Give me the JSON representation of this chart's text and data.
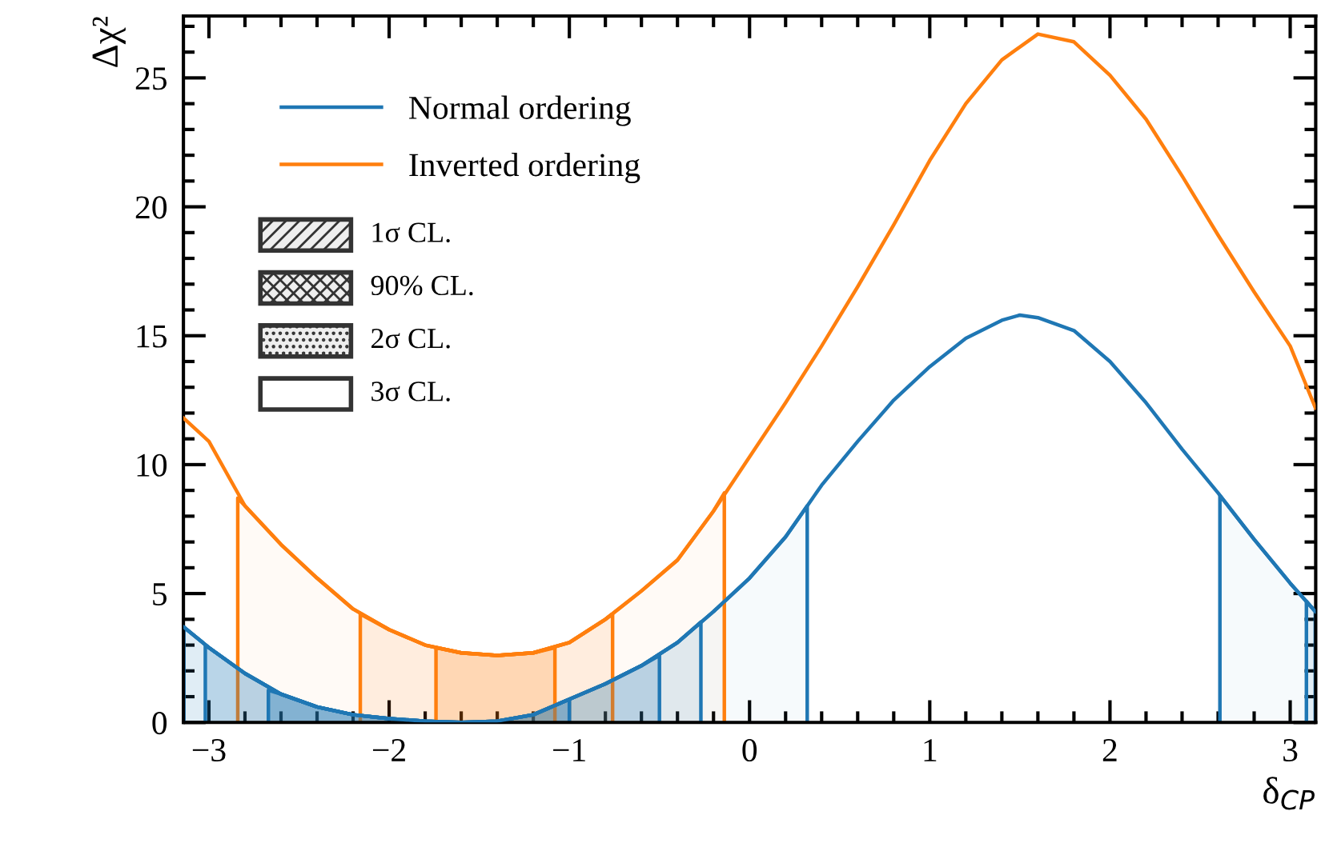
{
  "chart_data": {
    "type": "line",
    "xlabel": "δ$_{CP}$",
    "ylabel": "Δχ²",
    "xlim": [
      -3.1416,
      3.1416
    ],
    "xticks": [
      -3,
      -2,
      -1,
      0,
      1,
      2,
      3
    ],
    "ylim": [
      0,
      27.4
    ],
    "yticks": [
      0,
      5,
      10,
      15,
      20,
      25
    ],
    "grid": false,
    "legend": "top left",
    "marker": "none",
    "line_style": "solid",
    "annotations": [
      "1σ CL.",
      "90% CL.",
      "2σ CL.",
      "3σ CL."
    ],
    "series": [
      {
        "name": "Normal ordering",
        "color": "#1f77b4",
        "x": [
          -3.14,
          -3.0,
          -2.8,
          -2.6,
          -2.4,
          -2.2,
          -2.0,
          -1.8,
          -1.6,
          -1.4,
          -1.2,
          -1.0,
          -0.8,
          -0.6,
          -0.4,
          -0.2,
          0.0,
          0.2,
          0.4,
          0.6,
          0.8,
          1.0,
          1.2,
          1.4,
          1.5,
          1.6,
          1.8,
          2.0,
          2.2,
          2.4,
          2.6,
          2.8,
          3.0,
          3.14
        ],
        "values": [
          3.7,
          2.9,
          1.9,
          1.1,
          0.6,
          0.3,
          0.15,
          0.05,
          0.0,
          0.05,
          0.3,
          0.9,
          1.5,
          2.2,
          3.1,
          4.3,
          5.6,
          7.2,
          9.2,
          10.9,
          12.5,
          13.8,
          14.9,
          15.6,
          15.8,
          15.7,
          15.2,
          14.0,
          12.4,
          10.6,
          8.9,
          7.1,
          5.4,
          4.3
        ]
      },
      {
        "name": "Inverted ordering",
        "color": "#ff7f0e",
        "x": [
          -3.14,
          -3.0,
          -2.8,
          -2.6,
          -2.4,
          -2.2,
          -2.0,
          -1.8,
          -1.6,
          -1.4,
          -1.2,
          -1.0,
          -0.8,
          -0.6,
          -0.4,
          -0.2,
          0.0,
          0.2,
          0.4,
          0.6,
          0.8,
          1.0,
          1.2,
          1.4,
          1.6,
          1.8,
          2.0,
          2.2,
          2.4,
          2.6,
          2.8,
          3.0,
          3.14
        ],
        "values": [
          11.8,
          10.9,
          8.4,
          6.9,
          5.6,
          4.4,
          3.6,
          3.0,
          2.7,
          2.6,
          2.7,
          3.1,
          4.0,
          5.1,
          6.3,
          8.2,
          10.3,
          12.4,
          14.6,
          16.9,
          19.3,
          21.8,
          24.0,
          25.7,
          26.7,
          26.4,
          25.1,
          23.4,
          21.2,
          18.9,
          16.7,
          14.6,
          12.2
        ]
      },
      {
        "type": "area",
        "color": "#1f77b4",
        "x": [
          -2.67,
          -2.6,
          -2.4,
          -2.2,
          -2.0,
          -1.8,
          -1.6,
          -1.4,
          -1.2,
          -1.0
        ],
        "values": [
          1.25,
          1.1,
          0.6,
          0.3,
          0.15,
          0.05,
          0.0,
          0.05,
          0.3,
          0.9
        ]
      },
      {
        "type": "area",
        "color": "#1f77b4",
        "x": [
          -3.02,
          -3.0,
          -2.8,
          -2.6,
          -2.4,
          -2.2,
          -2.0,
          -1.8,
          -1.6,
          -1.4,
          -1.2,
          -1.0,
          -0.8,
          -0.6,
          -0.5
        ],
        "values": [
          3.0,
          2.9,
          1.9,
          1.1,
          0.6,
          0.3,
          0.15,
          0.05,
          0.0,
          0.05,
          0.3,
          0.9,
          1.5,
          2.2,
          2.6
        ]
      },
      {
        "type": "area",
        "color": "#1f77b4",
        "x": [
          -3.14,
          -3.0,
          -2.8,
          -2.6,
          -2.4,
          -2.2,
          -2.0,
          -1.8,
          -1.6,
          -1.4,
          -1.2,
          -1.0,
          -0.8,
          -0.6,
          -0.4,
          -0.27
        ],
        "values": [
          3.7,
          2.9,
          1.9,
          1.1,
          0.6,
          0.3,
          0.15,
          0.05,
          0.0,
          0.05,
          0.3,
          0.9,
          1.5,
          2.2,
          3.1,
          3.9
        ]
      },
      {
        "type": "area",
        "color": "#1f77b4",
        "x": [
          3.09,
          3.14
        ],
        "values": [
          4.7,
          4.3
        ]
      },
      {
        "type": "area",
        "color": "#1f77b4",
        "x": [
          -3.14,
          -3.0,
          -2.8,
          -2.6,
          -2.4,
          -2.2,
          -2.0,
          -1.8,
          -1.6,
          -1.4,
          -1.2,
          -1.0,
          -0.8,
          -0.6,
          -0.4,
          -0.2,
          0.0,
          0.2,
          0.32
        ],
        "values": [
          3.7,
          2.9,
          1.9,
          1.1,
          0.6,
          0.3,
          0.15,
          0.05,
          0.0,
          0.05,
          0.3,
          0.9,
          1.5,
          2.2,
          3.1,
          4.3,
          5.6,
          7.2,
          8.4
        ]
      },
      {
        "type": "area",
        "color": "#1f77b4",
        "x": [
          2.61,
          2.8,
          3.0,
          3.14
        ],
        "values": [
          8.8,
          7.1,
          5.4,
          4.3
        ]
      },
      {
        "type": "area",
        "color": "#ff7f0e",
        "x": [
          -1.74,
          -1.6,
          -1.4,
          -1.2,
          -1.08
        ],
        "values": [
          2.9,
          2.7,
          2.6,
          2.7,
          2.9
        ]
      },
      {
        "type": "area",
        "color": "#ff7f0e",
        "x": [
          -2.16,
          -2.0,
          -1.8,
          -1.6,
          -1.4,
          -1.2,
          -1.0,
          -0.8,
          -0.76
        ],
        "values": [
          4.2,
          3.6,
          3.0,
          2.7,
          2.6,
          2.7,
          3.1,
          4.0,
          4.2
        ]
      },
      {
        "type": "area",
        "color": "#ff7f0e",
        "x": [
          -2.84,
          -2.8,
          -2.6,
          -2.4,
          -2.2,
          -2.0,
          -1.8,
          -1.6,
          -1.4,
          -1.2,
          -1.0,
          -0.8,
          -0.6,
          -0.4,
          -0.2,
          -0.14
        ],
        "values": [
          8.7,
          8.4,
          6.9,
          5.6,
          4.4,
          3.6,
          3.0,
          2.7,
          2.6,
          2.7,
          3.1,
          4.0,
          5.1,
          6.3,
          8.2,
          8.9
        ]
      }
    ]
  }
}
